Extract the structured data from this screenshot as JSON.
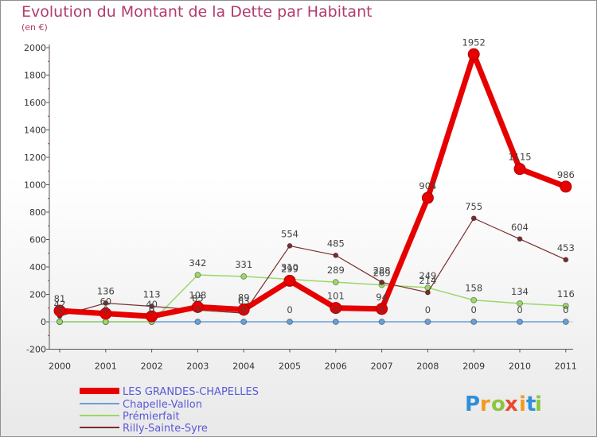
{
  "chart_data": {
    "type": "line",
    "title": "Evolution du Montant de la Dette par Habitant",
    "subtitle": "(en €)",
    "categories": [
      "2000",
      "2001",
      "2002",
      "2003",
      "2004",
      "2005",
      "2006",
      "2007",
      "2008",
      "2009",
      "2010",
      "2011"
    ],
    "ylim": [
      -200,
      2000
    ],
    "yticks": [
      -200,
      0,
      200,
      400,
      600,
      800,
      1000,
      1200,
      1400,
      1600,
      1800,
      2000
    ],
    "grid": false,
    "legend_position": "bottom-left",
    "series": [
      {
        "name": "LES GRANDES-CHAPELLES",
        "color": "#e60000",
        "width": 7,
        "marker": 7,
        "values": [
          81,
          60,
          40,
          108,
          89,
          299,
          101,
          94,
          904,
          1952,
          1115,
          986
        ],
        "labels": [
          "81",
          "60",
          "40",
          "108",
          "89",
          "299",
          "101",
          "94",
          "904",
          "1952",
          "1115",
          "986"
        ]
      },
      {
        "name": "Chapelle-Vallon",
        "color": "#6a9fd8",
        "width": 1.5,
        "marker": 3.5,
        "values": [
          0,
          0,
          0,
          0,
          0,
          0,
          0,
          0,
          0,
          0,
          0,
          0
        ],
        "labels": [
          "0",
          "0",
          "0",
          "0",
          "0",
          "0",
          "0",
          "0",
          "0",
          "0",
          "0",
          "0"
        ]
      },
      {
        "name": "Prémierfait",
        "color": "#9bd86a",
        "width": 1.5,
        "marker": 3.5,
        "values": [
          0,
          0,
          0,
          342,
          331,
          310,
          289,
          269,
          249,
          158,
          134,
          116
        ],
        "labels": [
          "0",
          "0",
          "0",
          "342",
          "331",
          "310",
          "289",
          "269",
          "249",
          "158",
          "134",
          "116"
        ]
      },
      {
        "name": "Rilly-Sainte-Syre",
        "color": "#7a2c2c",
        "width": 1.2,
        "marker": 3,
        "values": [
          42,
          136,
          113,
          85,
          63,
          554,
          485,
          288,
          214,
          755,
          604,
          453
        ],
        "labels": [
          "42",
          "136",
          "113",
          "85",
          "63",
          "554",
          "485",
          "288",
          "214",
          "755",
          "604",
          "453"
        ]
      }
    ]
  },
  "brand": {
    "letters": [
      "P",
      "r",
      "o",
      "x",
      "i",
      "t",
      "i"
    ],
    "colors": [
      "#2f8fd8",
      "#f39a1e",
      "#8cc63f",
      "#e8492f",
      "#f39a1e",
      "#2f8fd8",
      "#8cc63f"
    ]
  }
}
